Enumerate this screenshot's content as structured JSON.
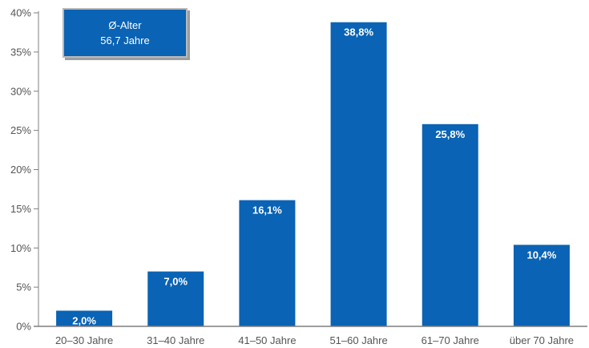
{
  "chart_data": {
    "type": "bar",
    "title": "",
    "xlabel": "",
    "ylabel": "",
    "categories": [
      "20–30 Jahre",
      "31–40 Jahre",
      "41–50 Jahre",
      "51–60 Jahre",
      "61–70 Jahre",
      "über 70 Jahre"
    ],
    "values": [
      2.0,
      7.0,
      16.1,
      38.8,
      25.8,
      10.4
    ],
    "data_labels": [
      "2,0%",
      "7,0%",
      "16,1%",
      "38,8%",
      "25,8%",
      "10,4%"
    ],
    "ylim": [
      0,
      40
    ],
    "yticks": [
      0,
      5,
      10,
      15,
      20,
      25,
      30,
      35,
      40
    ],
    "ytick_labels": [
      "0%",
      "5%",
      "10%",
      "15%",
      "20%",
      "25%",
      "30%",
      "35%",
      "40%"
    ],
    "grid": false,
    "legend": "none",
    "bar_color": "#0a63b4",
    "annotation": {
      "line1": "Ø-Alter",
      "line2": "56,7 Jahre"
    }
  }
}
